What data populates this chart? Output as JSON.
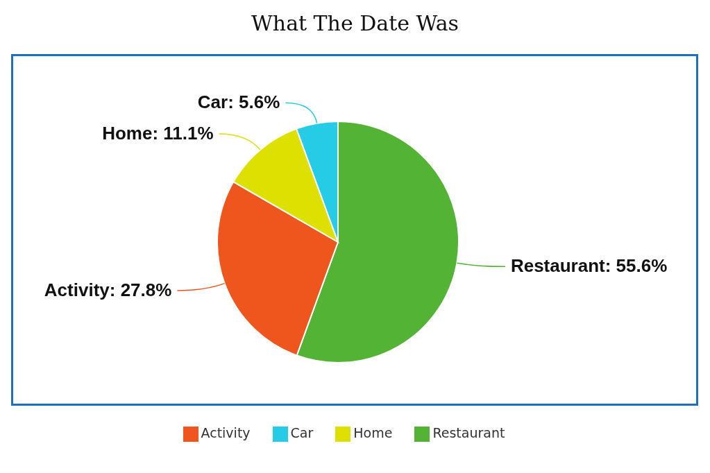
{
  "chart_data": {
    "type": "pie",
    "title": "What The Date Was",
    "categories": [
      "Restaurant",
      "Activity",
      "Home",
      "Car"
    ],
    "values": [
      55.6,
      27.8,
      11.1,
      5.6
    ],
    "colors": [
      "#52b335",
      "#ee561e",
      "#dde000",
      "#26cce6"
    ],
    "value_labels": [
      "Restaurant: 55.6%",
      "Activity: 27.8%",
      "Home: 11.1%",
      "Car: 5.6%"
    ],
    "legend": "bottom"
  }
}
